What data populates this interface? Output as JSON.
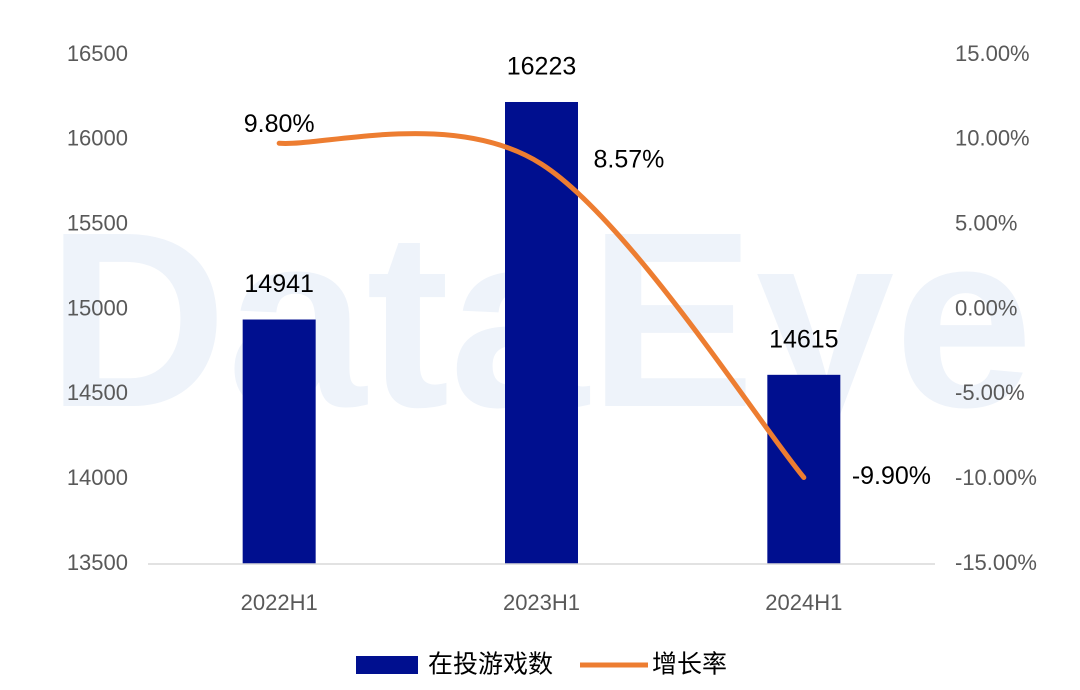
{
  "watermark": "DataEye",
  "chart_data": {
    "type": "bar",
    "categories": [
      "2022H1",
      "2023H1",
      "2024H1"
    ],
    "series": [
      {
        "name": "在投游戏数",
        "type": "bar",
        "color": "#000f8f",
        "values": [
          14941,
          16223,
          14615
        ]
      },
      {
        "name": "增长率",
        "type": "line",
        "axis": "y2",
        "color": "#ed7d31",
        "values": [
          9.8,
          8.57,
          -9.9
        ],
        "value_labels": [
          "9.80%",
          "8.57%",
          "-9.90%"
        ]
      }
    ],
    "ylim": [
      13500,
      16500
    ],
    "yticks": [
      13500,
      14000,
      14500,
      15000,
      15500,
      16000,
      16500
    ],
    "y2lim": [
      -15,
      15
    ],
    "y2ticks": [
      {
        "value": -15,
        "label": "-15.00%"
      },
      {
        "value": -10,
        "label": "-10.00%"
      },
      {
        "value": -5,
        "label": "-5.00%"
      },
      {
        "value": 0,
        "label": "0.00%"
      },
      {
        "value": 5,
        "label": "5.00%"
      },
      {
        "value": 10,
        "label": "10.00%"
      },
      {
        "value": 15,
        "label": "15.00%"
      }
    ],
    "grid": false,
    "legend": "bottom"
  }
}
